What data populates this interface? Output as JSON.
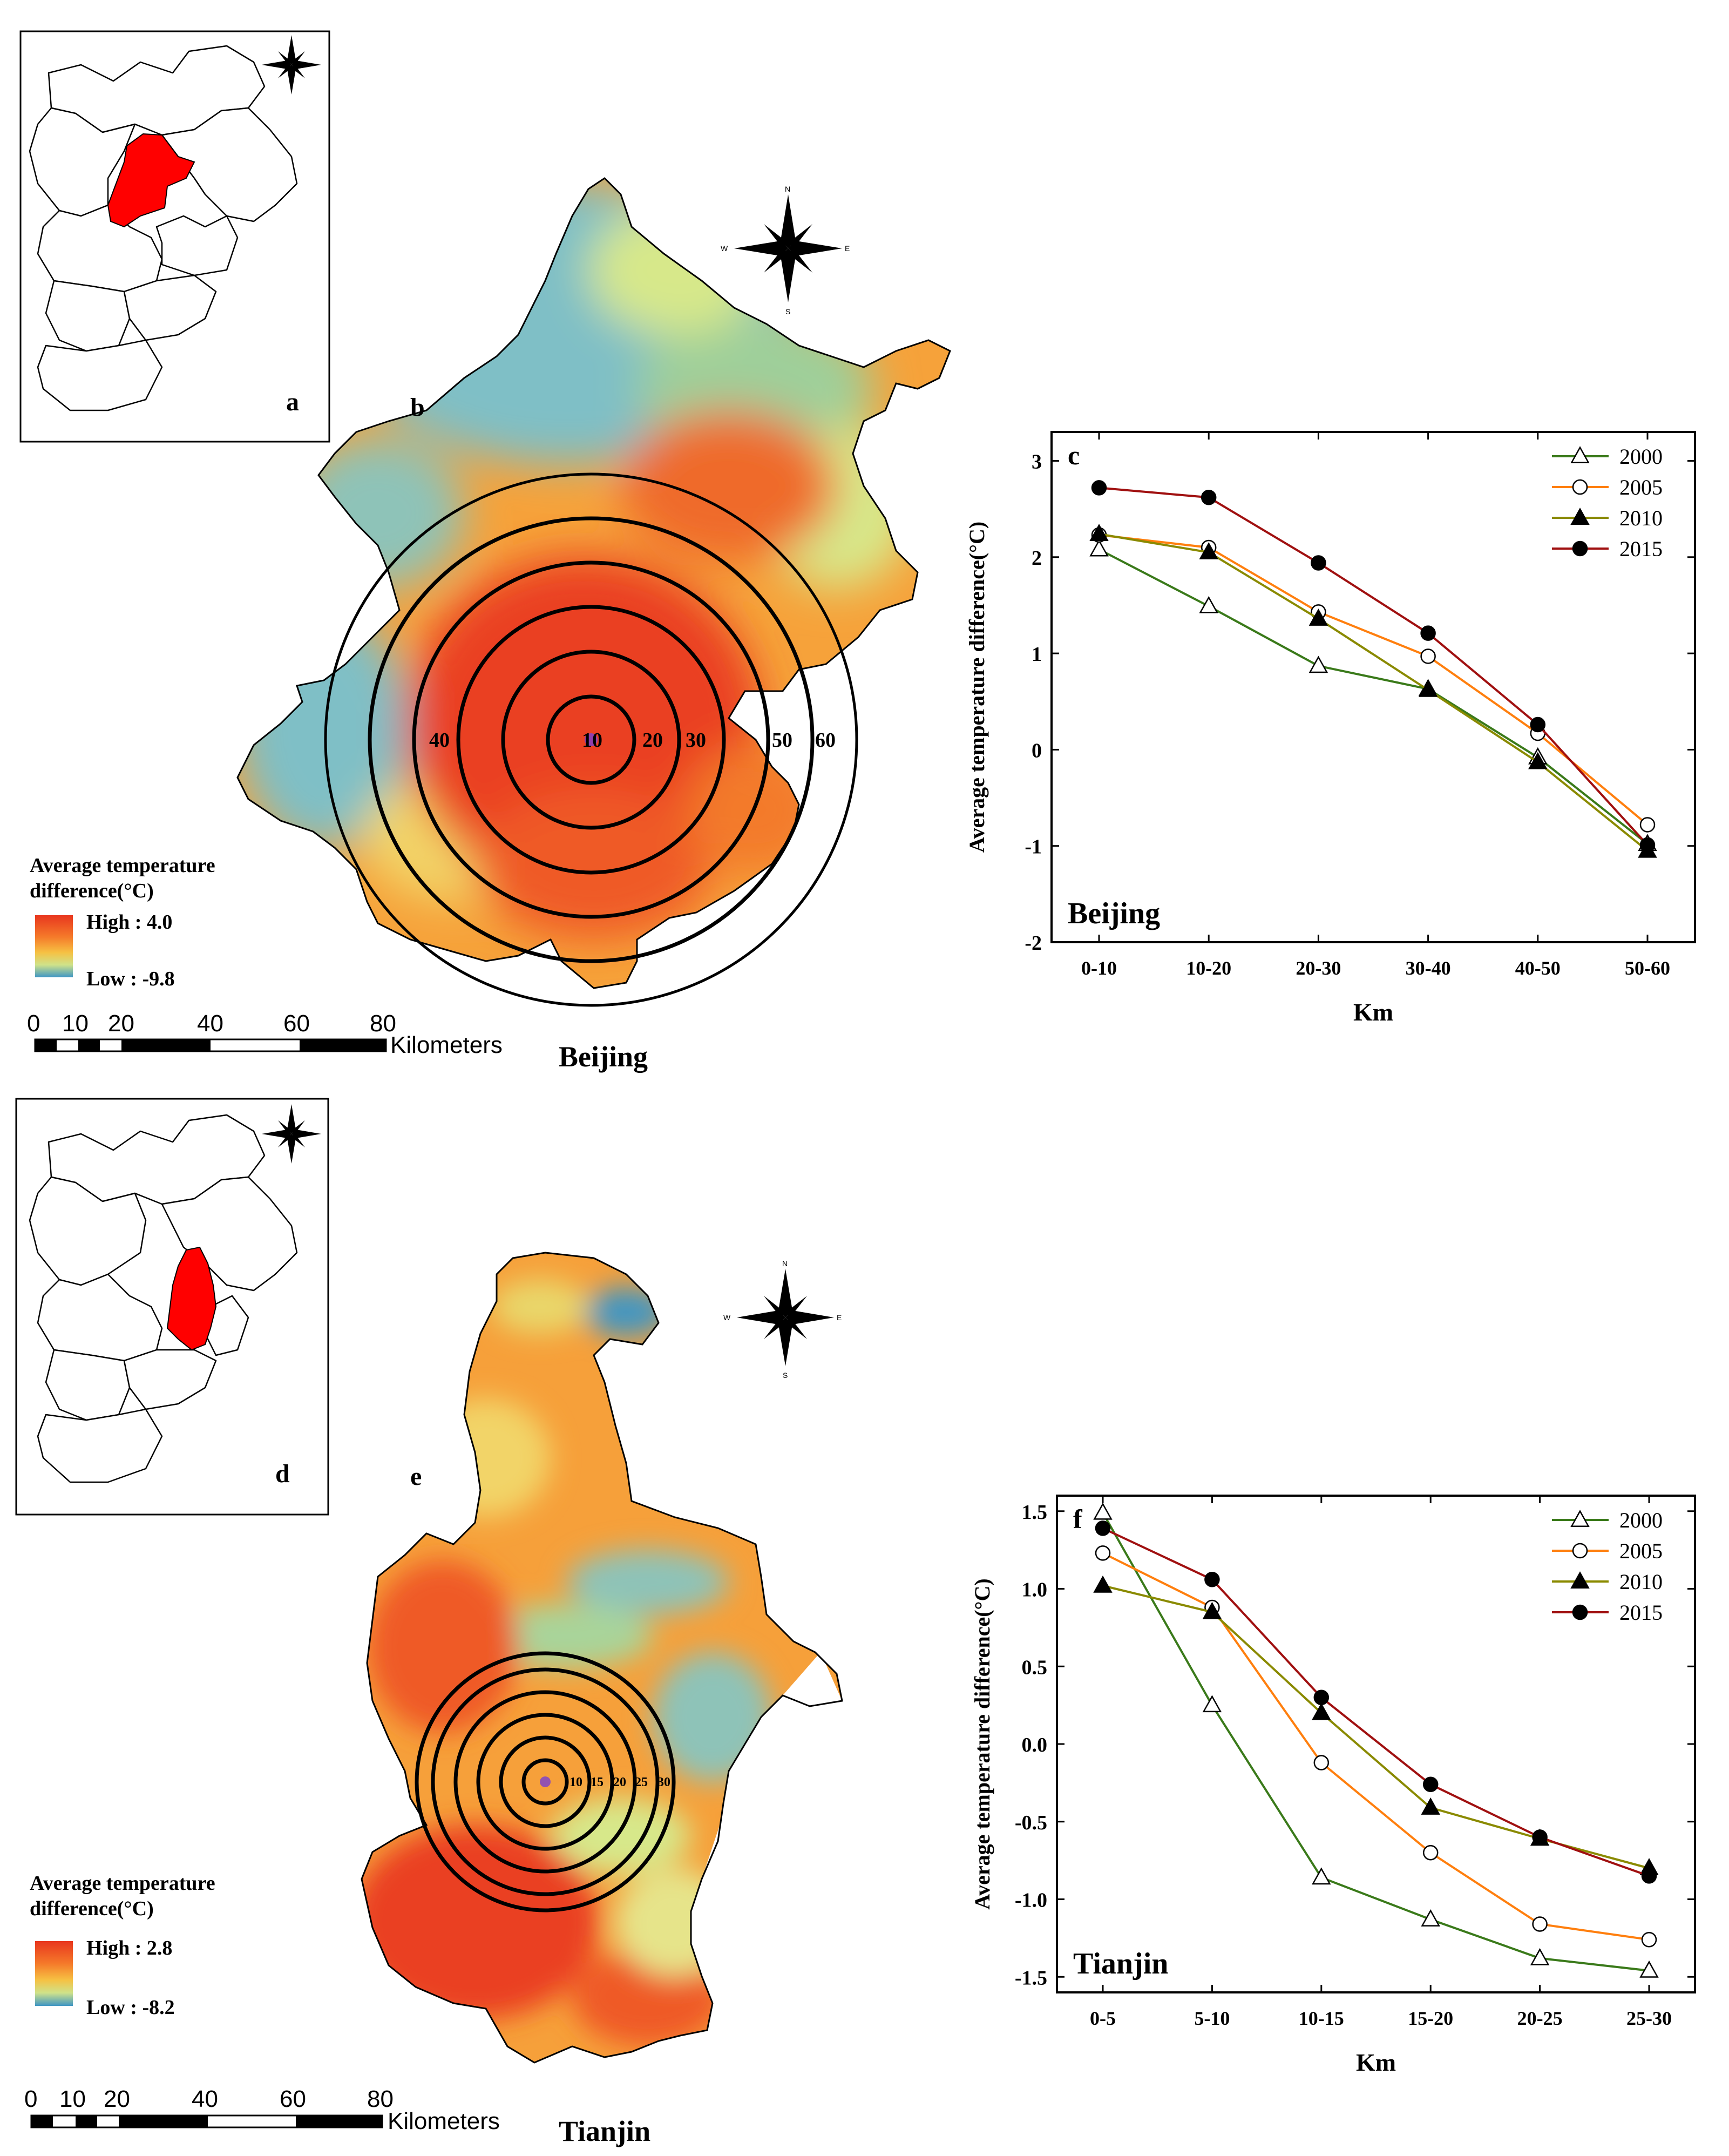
{
  "colors": {
    "hot": "#e8361e",
    "warm": "#f57a2a",
    "mid": "#f6c143",
    "cool": "#cfe28a",
    "cold": "#3f96c4",
    "highlight": "#ff0000",
    "s2000": "#3a7a1a",
    "s2005": "#ff7f0e",
    "s2010": "#8a8a00",
    "s2015": "#a01010"
  },
  "beijing": {
    "inset_label": "a",
    "map_label": "b",
    "map_title": "Beijing",
    "legend": {
      "title_line1": "Average temperature",
      "title_line2": "difference(°C)",
      "high": "High : 4.0",
      "low": "Low : -9.8"
    },
    "ring_labels": [
      "10",
      "20",
      "30",
      "40",
      "50",
      "60"
    ],
    "scalebar": {
      "ticks": [
        "0",
        "10",
        "20",
        "40",
        "60",
        "80"
      ],
      "unit": "Kilometers"
    }
  },
  "tianjin": {
    "inset_label": "d",
    "map_label": "e",
    "map_title": "Tianjin",
    "legend": {
      "title_line1": "Average temperature",
      "title_line2": "difference(°C)",
      "high": "High : 2.8",
      "low": "Low : -8.2"
    },
    "ring_labels": [
      "10",
      "15",
      "20",
      "25",
      "30"
    ],
    "scalebar": {
      "ticks": [
        "0",
        "10",
        "20",
        "40",
        "60",
        "80"
      ],
      "unit": "Kilometers"
    }
  },
  "compass": {
    "n": "N",
    "s": "S",
    "e": "E",
    "w": "W"
  },
  "chart_data": [
    {
      "id": "beijing-chart",
      "type": "line",
      "panel_label": "c",
      "city": "Beijing",
      "xlabel": "Km",
      "ylabel": "Average temperature difference(°C)",
      "categories": [
        "0-10",
        "10-20",
        "20-30",
        "30-40",
        "40-50",
        "50-60"
      ],
      "ylim": [
        -2,
        3.3
      ],
      "yticks": [
        -2,
        -1,
        0,
        1,
        2,
        3
      ],
      "ytick_labels": [
        "-2",
        "-1",
        "0",
        "1",
        "2",
        "3"
      ],
      "legend_position": "top-right",
      "series": [
        {
          "name": "2000",
          "marker": "triangle-open",
          "values": [
            2.08,
            1.49,
            0.87,
            0.63,
            -0.08,
            -0.98
          ]
        },
        {
          "name": "2005",
          "marker": "circle-open",
          "values": [
            2.23,
            2.1,
            1.43,
            0.97,
            0.17,
            -0.78
          ]
        },
        {
          "name": "2010",
          "marker": "triangle-filled",
          "values": [
            2.24,
            2.05,
            1.36,
            0.62,
            -0.13,
            -1.05
          ]
        },
        {
          "name": "2015",
          "marker": "circle-filled",
          "values": [
            2.72,
            2.62,
            1.94,
            1.21,
            0.26,
            -0.99
          ]
        }
      ]
    },
    {
      "id": "tianjin-chart",
      "type": "line",
      "panel_label": "f",
      "city": "Tianjin",
      "xlabel": "Km",
      "ylabel": "Average temperature difference(°C)",
      "categories": [
        "0-5",
        "5-10",
        "10-15",
        "15-20",
        "20-25",
        "25-30"
      ],
      "ylim": [
        -1.6,
        1.6
      ],
      "yticks": [
        -1.5,
        -1.0,
        -0.5,
        0.0,
        0.5,
        1.0,
        1.5
      ],
      "ytick_labels": [
        "-1.5",
        "-1.0",
        "-0.5",
        "0.0",
        "0.5",
        "1.0",
        "1.5"
      ],
      "legend_position": "top-right",
      "series": [
        {
          "name": "2000",
          "marker": "triangle-open",
          "values": [
            1.49,
            0.25,
            -0.86,
            -1.13,
            -1.38,
            -1.46
          ]
        },
        {
          "name": "2005",
          "marker": "circle-open",
          "values": [
            1.23,
            0.88,
            -0.12,
            -0.7,
            -1.16,
            -1.26
          ]
        },
        {
          "name": "2010",
          "marker": "triangle-filled",
          "values": [
            1.02,
            0.85,
            0.2,
            -0.41,
            -0.61,
            -0.8
          ]
        },
        {
          "name": "2015",
          "marker": "circle-filled",
          "values": [
            1.39,
            1.06,
            0.3,
            -0.26,
            -0.6,
            -0.85
          ]
        }
      ]
    }
  ]
}
